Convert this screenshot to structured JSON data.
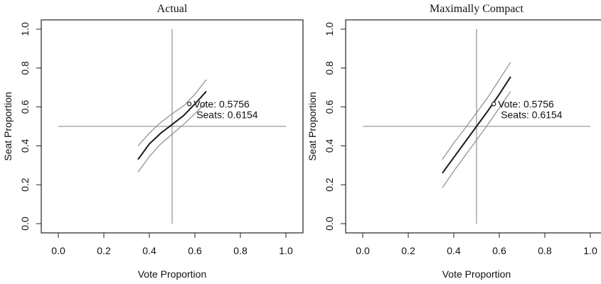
{
  "chart_data": [
    {
      "type": "line",
      "title": "Actual",
      "xlabel": "Vote Proportion",
      "ylabel": "Seat Proportion",
      "xlim": [
        0,
        1
      ],
      "ylim": [
        0,
        1
      ],
      "x_ticks": [
        "0.0",
        "0.2",
        "0.4",
        "0.6",
        "0.8",
        "1.0"
      ],
      "y_ticks": [
        "0.0",
        "0.2",
        "0.4",
        "0.6",
        "0.8",
        "1.0"
      ],
      "reference_lines": {
        "vertical_x": 0.5,
        "horizontal_y": 0.5
      },
      "series": [
        {
          "role": "estimate",
          "x": [
            0.35,
            0.4,
            0.45,
            0.5,
            0.55,
            0.6,
            0.65
          ],
          "y": [
            0.33,
            0.41,
            0.465,
            0.51,
            0.555,
            0.615,
            0.68
          ]
        },
        {
          "role": "upper",
          "x": [
            0.35,
            0.4,
            0.45,
            0.5,
            0.55,
            0.6,
            0.65
          ],
          "y": [
            0.4,
            0.465,
            0.52,
            0.565,
            0.605,
            0.665,
            0.74
          ]
        },
        {
          "role": "lower",
          "x": [
            0.35,
            0.4,
            0.45,
            0.5,
            0.55,
            0.6,
            0.65
          ],
          "y": [
            0.265,
            0.345,
            0.41,
            0.46,
            0.51,
            0.565,
            0.625
          ]
        }
      ],
      "point": {
        "x": 0.5756,
        "y": 0.6154
      },
      "annotation": {
        "vote_label": "Vote: 0.5756",
        "seats_label": "Seats: 0.6154"
      }
    },
    {
      "type": "line",
      "title": "Maximally Compact",
      "xlabel": "Vote Proportion",
      "ylabel": "Seat Proportion",
      "xlim": [
        0,
        1
      ],
      "ylim": [
        0,
        1
      ],
      "x_ticks": [
        "0.0",
        "0.2",
        "0.4",
        "0.6",
        "0.8",
        "1.0"
      ],
      "y_ticks": [
        "0.0",
        "0.2",
        "0.4",
        "0.6",
        "0.8",
        "1.0"
      ],
      "reference_lines": {
        "vertical_x": 0.5,
        "horizontal_y": 0.5
      },
      "series": [
        {
          "role": "estimate",
          "x": [
            0.35,
            0.4,
            0.45,
            0.5,
            0.55,
            0.6,
            0.65
          ],
          "y": [
            0.26,
            0.34,
            0.42,
            0.5,
            0.58,
            0.665,
            0.755
          ]
        },
        {
          "role": "upper",
          "x": [
            0.35,
            0.4,
            0.45,
            0.5,
            0.55,
            0.6,
            0.65
          ],
          "y": [
            0.33,
            0.415,
            0.49,
            0.57,
            0.65,
            0.74,
            0.83
          ]
        },
        {
          "role": "lower",
          "x": [
            0.35,
            0.4,
            0.45,
            0.5,
            0.55,
            0.6,
            0.65
          ],
          "y": [
            0.185,
            0.27,
            0.35,
            0.43,
            0.51,
            0.595,
            0.68
          ]
        }
      ],
      "point": {
        "x": 0.5756,
        "y": 0.6154
      },
      "annotation": {
        "vote_label": "Vote: 0.5756",
        "seats_label": "Seats: 0.6154"
      }
    }
  ],
  "colors": {
    "estimate": "#1a1a1a",
    "band": "#8c8c8c",
    "reference": "#9a9a9a",
    "frame": "#222222"
  }
}
